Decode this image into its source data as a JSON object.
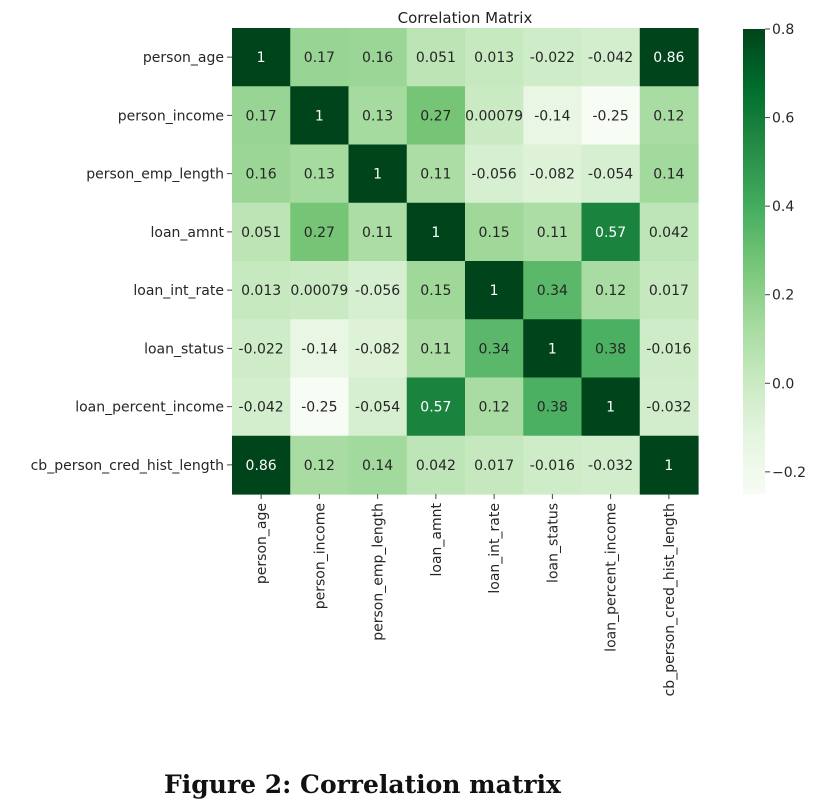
{
  "chart_data": {
    "type": "heatmap",
    "title": "Correlation Matrix",
    "variables": [
      "person_age",
      "person_income",
      "person_emp_length",
      "loan_amnt",
      "loan_int_rate",
      "loan_status",
      "loan_percent_income",
      "cb_person_cred_hist_length"
    ],
    "matrix": [
      [
        1,
        0.17,
        0.16,
        0.051,
        0.013,
        -0.022,
        -0.042,
        0.86
      ],
      [
        0.17,
        1,
        0.13,
        0.27,
        0.00079,
        -0.14,
        -0.25,
        0.12
      ],
      [
        0.16,
        0.13,
        1,
        0.11,
        -0.056,
        -0.082,
        -0.054,
        0.14
      ],
      [
        0.051,
        0.27,
        0.11,
        1,
        0.15,
        0.11,
        0.57,
        0.042
      ],
      [
        0.013,
        0.00079,
        -0.056,
        0.15,
        1,
        0.34,
        0.12,
        0.017
      ],
      [
        -0.022,
        -0.14,
        -0.082,
        0.11,
        0.34,
        1,
        0.38,
        -0.016
      ],
      [
        -0.042,
        -0.25,
        -0.054,
        0.57,
        0.12,
        0.38,
        1,
        -0.032
      ],
      [
        0.86,
        0.12,
        0.14,
        0.042,
        0.017,
        -0.016,
        -0.032,
        1
      ]
    ],
    "cell_labels": [
      [
        "1",
        "0.17",
        "0.16",
        "0.051",
        "0.013",
        "-0.022",
        "-0.042",
        "0.86"
      ],
      [
        "0.17",
        "1",
        "0.13",
        "0.27",
        "0.00079",
        "-0.14",
        "-0.25",
        "0.12"
      ],
      [
        "0.16",
        "0.13",
        "1",
        "0.11",
        "-0.056",
        "-0.082",
        "-0.054",
        "0.14"
      ],
      [
        "0.051",
        "0.27",
        "0.11",
        "1",
        "0.15",
        "0.11",
        "0.57",
        "0.042"
      ],
      [
        "0.013",
        "0.00079",
        "-0.056",
        "0.15",
        "1",
        "0.34",
        "0.12",
        "0.017"
      ],
      [
        "-0.022",
        "-0.14",
        "-0.082",
        "0.11",
        "0.34",
        "1",
        "0.38",
        "-0.016"
      ],
      [
        "-0.042",
        "-0.25",
        "-0.054",
        "0.57",
        "0.12",
        "0.38",
        "1",
        "-0.032"
      ],
      [
        "0.86",
        "0.12",
        "0.14",
        "0.042",
        "0.017",
        "-0.016",
        "-0.032",
        "1"
      ]
    ],
    "colorbar": {
      "range": [
        -0.25,
        0.8
      ],
      "ticks": [
        0.8,
        0.6,
        0.4,
        0.2,
        0.0,
        -0.2
      ],
      "tick_labels": [
        "0.8",
        "0.6",
        "0.4",
        "0.2",
        "0.0",
        "−0.2"
      ],
      "colormap": "Greens",
      "low_color": "#f7fcf5",
      "high_color": "#00441b"
    }
  },
  "caption": "Figure 2: Correlation matrix"
}
